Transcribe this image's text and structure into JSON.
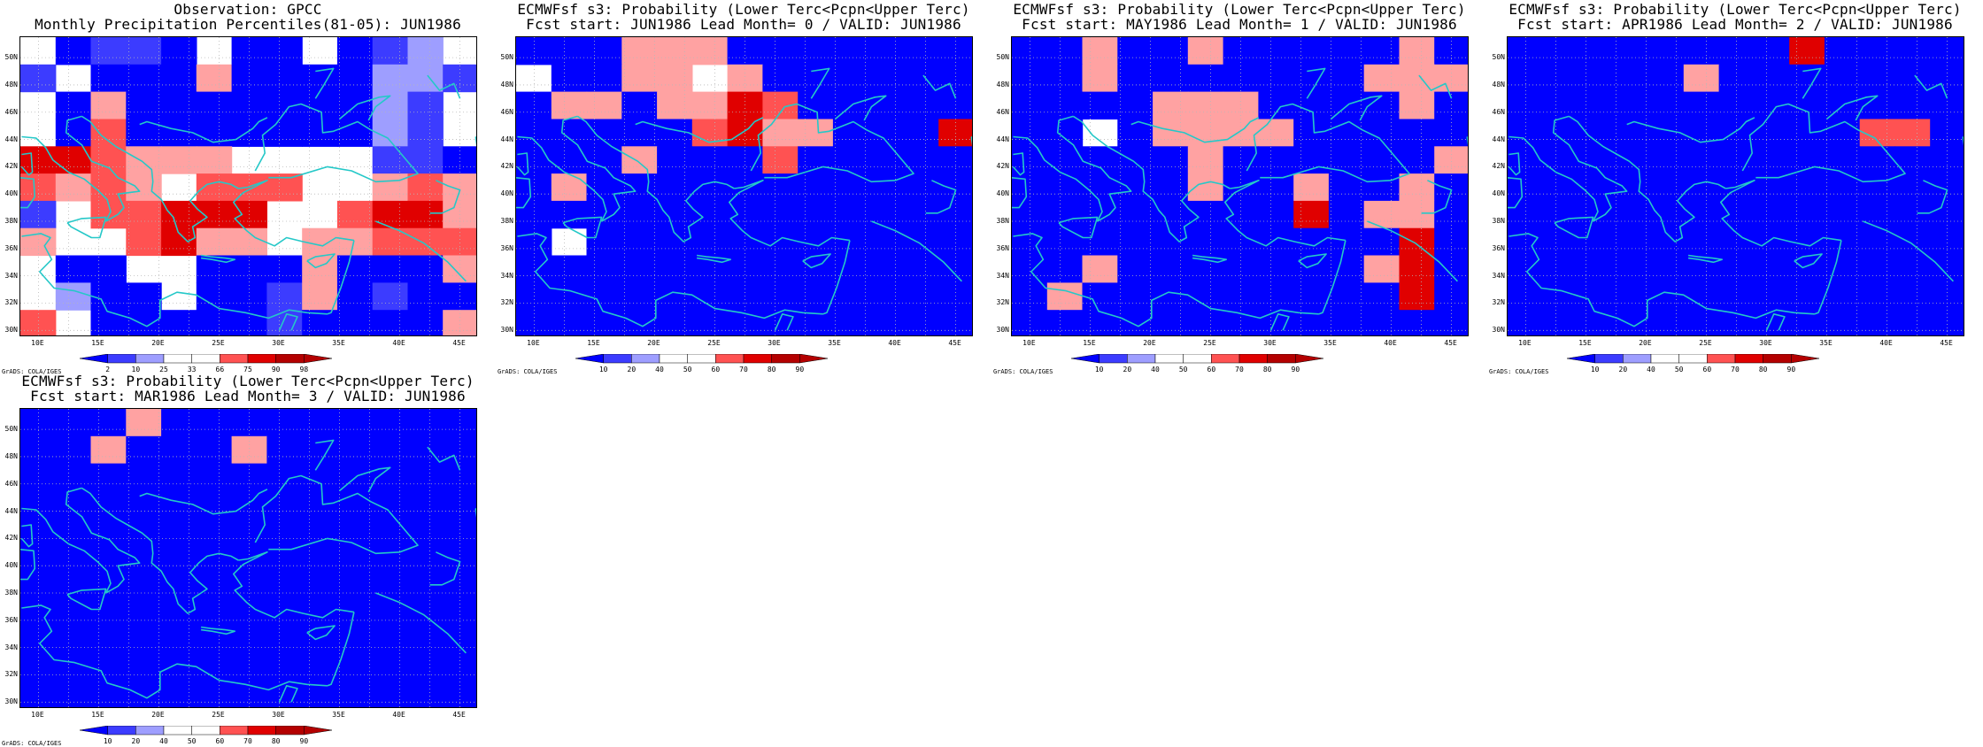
{
  "lat_labels": [
    "50N",
    "48N",
    "46N",
    "44N",
    "42N",
    "40N",
    "38N",
    "36N",
    "34N",
    "32N",
    "30N"
  ],
  "lon_labels": [
    "10E",
    "15E",
    "20E",
    "25E",
    "30E",
    "35E",
    "40E",
    "45E"
  ],
  "credit": "GrADS: COLA/IGES",
  "colors": {
    "coast": "#25c8c8",
    "grid": "#b8b8b8",
    "palette": [
      "#0000ff",
      "#3c3cff",
      "#9e9eff",
      "#ffffff",
      "#ffa2a2",
      "#ff5252",
      "#e00000",
      "#b40000"
    ]
  },
  "panels": [
    {
      "title1": "Observation: GPCC",
      "title2": "Monthly Precipitation Percentiles(81-05): JUN1986",
      "cbar_labels": [
        "2",
        "10",
        "25",
        "33",
        "66",
        "75",
        "90",
        "98"
      ],
      "grid": [
        "3011030030123",
        "1300040000221",
        "3040000000213",
        "3050000000213",
        "6654443333110",
        "5454355533454",
        "1355666335664",
        "4335644344555",
        "3003300040004",
        "3200300140100",
        "5300000100004"
      ]
    },
    {
      "title1": "ECMWFsf s3: Probability (Lower Terc<Pcpn<Upper Terc)",
      "title2": "Fcst start: JUN1986  Lead Month= 0 / VALID: JUN1986",
      "cbar_labels": [
        "10",
        "20",
        "40",
        "50",
        "60",
        "70",
        "80",
        "90"
      ],
      "grid": [
        "0004440000000",
        "3004434000000",
        "0440446500000",
        "0000056440006",
        "0004000500000",
        "0400000000000",
        "0000000000000",
        "0300000000000",
        "0000000000000",
        "0000000000000",
        "0000000000000"
      ]
    },
    {
      "title1": "ECMWFsf s3: Probability (Lower Terc<Pcpn<Upper Terc)",
      "title2": "Fcst start: MAY1986  Lead Month= 1 / VALID: JUN1986",
      "cbar_labels": [
        "10",
        "20",
        "40",
        "50",
        "60",
        "70",
        "80",
        "90"
      ],
      "grid": [
        "0040040000040",
        "0040000000444",
        "0000444000040",
        "0030444400000",
        "0000040000004",
        "0000040040040",
        "0000000060440",
        "0000000000060",
        "0040000000460",
        "0400000000060",
        "0000000000000"
      ]
    },
    {
      "title1": "ECMWFsf s3: Probability (Lower Terc<Pcpn<Upper Terc)",
      "title2": "Fcst start: APR1986  Lead Month= 2 / VALID: JUN1986",
      "cbar_labels": [
        "10",
        "20",
        "40",
        "50",
        "60",
        "70",
        "80",
        "90"
      ],
      "grid": [
        "0000000060000",
        "0000040000000",
        "0000000000000",
        "0000000000550",
        "0000000000000",
        "0000000000000",
        "0000000000000",
        "0000000000000",
        "0000000000000",
        "0000000000000",
        "0000000000000"
      ]
    },
    {
      "title1": "ECMWFsf s3: Probability (Lower Terc<Pcpn<Upper Terc)",
      "title2": "Fcst start: MAR1986  Lead Month= 3 / VALID: JUN1986",
      "cbar_labels": [
        "10",
        "20",
        "40",
        "50",
        "60",
        "70",
        "80",
        "90"
      ],
      "grid": [
        "0004000000000",
        "0040004000000",
        "0000000000000",
        "0000000000000",
        "0000000000000",
        "0000000000000",
        "0000000000000",
        "0000000000000",
        "0000000000000",
        "0000000000000",
        "0000000000000"
      ]
    }
  ]
}
